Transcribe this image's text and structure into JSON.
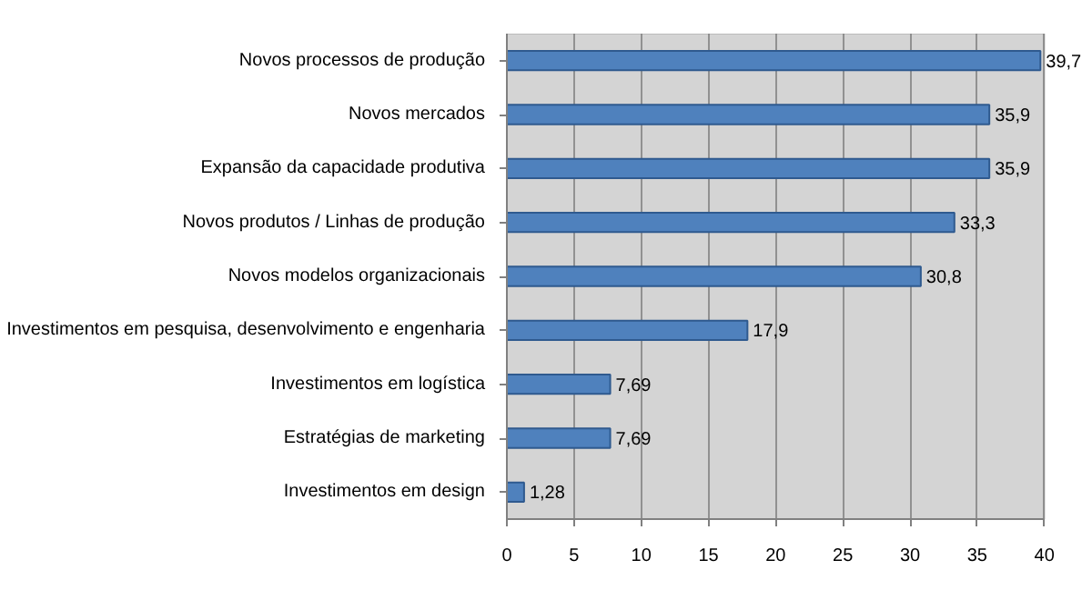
{
  "chart_data": {
    "type": "bar",
    "orientation": "horizontal",
    "categories": [
      "Novos processos de produção",
      "Novos mercados",
      "Expansão da capacidade produtiva",
      "Novos produtos / Linhas de produção",
      "Novos modelos organizacionais",
      "Investimentos em pesquisa, desenvolvimento e engenharia",
      "Investimentos em logística",
      "Estratégias de marketing",
      "Investimentos em design"
    ],
    "values": [
      39.7,
      35.9,
      35.9,
      33.3,
      30.8,
      17.9,
      7.69,
      7.69,
      1.28
    ],
    "value_labels": [
      "39,7",
      "35,9",
      "35,9",
      "33,3",
      "30,8",
      "17,9",
      "7,69",
      "7,69",
      "1,28"
    ],
    "color": "#4f81bd",
    "xlim": [
      0,
      40
    ],
    "xticks": [
      0,
      5,
      10,
      15,
      20,
      25,
      30,
      35,
      40
    ],
    "grid": "x",
    "legend": false
  }
}
